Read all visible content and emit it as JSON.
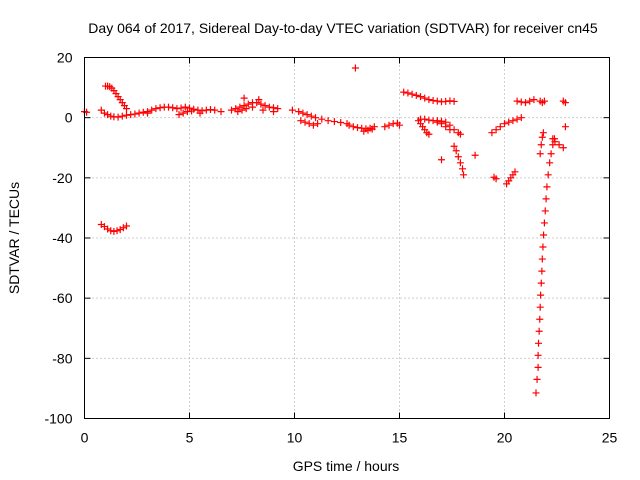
{
  "chart_data": {
    "type": "scatter",
    "title": "Day 064 of 2017, Sidereal Day-to-day VTEC variation (SDTVAR) for receiver cn45",
    "xlabel": "GPS time / hours",
    "ylabel": "SDTVAR / TECUs",
    "xlim": [
      0,
      25
    ],
    "ylim": [
      -100,
      20
    ],
    "xticks": [
      "0",
      "5",
      "10",
      "15",
      "20",
      "25"
    ],
    "yticks": [
      "20",
      "0",
      "-20",
      "-40",
      "-60",
      "-80",
      "-100"
    ],
    "grid": true,
    "marker": "+",
    "color": "#ff0000",
    "series": [
      {
        "values": [
          [
            0.0,
            2
          ],
          [
            0.1,
            1.8
          ],
          [
            0.8,
            2.5
          ],
          [
            0.95,
            1.5
          ],
          [
            1.1,
            1
          ],
          [
            1.25,
            0.5
          ],
          [
            1.4,
            0.3
          ],
          [
            1.6,
            0.2
          ],
          [
            1.8,
            0.5
          ],
          [
            2.0,
            0.8
          ],
          [
            2.2,
            1
          ],
          [
            2.4,
            1.2
          ],
          [
            2.6,
            1.5
          ],
          [
            2.8,
            1.8
          ],
          [
            3.0,
            2
          ],
          [
            1.0,
            10.5
          ],
          [
            1.1,
            10.5
          ],
          [
            1.2,
            10.3
          ],
          [
            1.3,
            9.8
          ],
          [
            1.4,
            9.0
          ],
          [
            1.5,
            8.0
          ],
          [
            1.6,
            7.0
          ],
          [
            1.7,
            6.0
          ],
          [
            1.8,
            5.0
          ],
          [
            1.9,
            4.0
          ],
          [
            2.0,
            3.0
          ],
          [
            0.8,
            -35.5
          ],
          [
            0.95,
            -36.2
          ],
          [
            1.1,
            -37
          ],
          [
            1.25,
            -37.6
          ],
          [
            1.4,
            -37.8
          ],
          [
            1.55,
            -37.6
          ],
          [
            1.7,
            -37.2
          ],
          [
            1.85,
            -36.6
          ],
          [
            2.0,
            -36.0
          ],
          [
            3.0,
            1.5
          ],
          [
            3.2,
            2.5
          ],
          [
            3.4,
            3
          ],
          [
            3.6,
            3.3
          ],
          [
            3.8,
            3.5
          ],
          [
            4.0,
            3.5
          ],
          [
            4.2,
            3.3
          ],
          [
            4.4,
            3
          ],
          [
            4.6,
            3.2
          ],
          [
            4.8,
            3.5
          ],
          [
            5.0,
            3.2
          ],
          [
            5.2,
            2.8
          ],
          [
            5.4,
            2.5
          ],
          [
            5.6,
            2.3
          ],
          [
            5.8,
            2.5
          ],
          [
            6.0,
            2.7
          ],
          [
            6.2,
            2.5
          ],
          [
            4.5,
            1
          ],
          [
            4.7,
            1.5
          ],
          [
            4.9,
            2
          ],
          [
            5.1,
            2.2
          ],
          [
            5.5,
            1.5
          ],
          [
            6.5,
            2
          ],
          [
            7.0,
            2.5
          ],
          [
            7.2,
            3
          ],
          [
            7.4,
            3.5
          ],
          [
            7.6,
            4
          ],
          [
            7.8,
            4.5
          ],
          [
            8.0,
            5
          ],
          [
            8.2,
            5
          ],
          [
            8.4,
            4.5
          ],
          [
            8.6,
            4
          ],
          [
            8.8,
            3.5
          ],
          [
            9.0,
            3.3
          ],
          [
            9.2,
            3
          ],
          [
            7.6,
            6.5
          ],
          [
            8.3,
            6
          ],
          [
            7.3,
            2
          ],
          [
            7.5,
            2.5
          ],
          [
            7.7,
            3
          ],
          [
            8.0,
            3.5
          ],
          [
            8.5,
            2.5
          ],
          [
            9.0,
            2
          ],
          [
            9.9,
            2.5
          ],
          [
            10.2,
            2
          ],
          [
            10.4,
            1.5
          ],
          [
            10.6,
            1
          ],
          [
            10.8,
            0.5
          ],
          [
            11.0,
            0
          ],
          [
            11.3,
            -0.5
          ],
          [
            11.6,
            -1
          ],
          [
            11.9,
            -1.3
          ],
          [
            12.2,
            -1.6
          ],
          [
            12.5,
            -2
          ],
          [
            10.3,
            -1
          ],
          [
            10.5,
            -1.5
          ],
          [
            10.7,
            -2
          ],
          [
            10.9,
            -2.5
          ],
          [
            11.1,
            -2
          ],
          [
            12.6,
            -2.5
          ],
          [
            12.8,
            -3
          ],
          [
            13.0,
            -3.3
          ],
          [
            13.2,
            -3.5
          ],
          [
            13.4,
            -3.7
          ],
          [
            13.6,
            -3.5
          ],
          [
            13.8,
            -3
          ],
          [
            13.3,
            -4.5
          ],
          [
            13.5,
            -4.2
          ],
          [
            13.7,
            -3.8
          ],
          [
            12.9,
            16.5
          ],
          [
            14.3,
            -3
          ],
          [
            14.5,
            -2.5
          ],
          [
            14.7,
            -2
          ],
          [
            14.9,
            -1.8
          ],
          [
            15.0,
            -2.5
          ],
          [
            15.2,
            8.5
          ],
          [
            15.4,
            8.2
          ],
          [
            15.6,
            7.8
          ],
          [
            15.8,
            7.4
          ],
          [
            16.0,
            7
          ],
          [
            16.2,
            6.5
          ],
          [
            16.4,
            6
          ],
          [
            16.6,
            5.7
          ],
          [
            16.8,
            5.5
          ],
          [
            17.0,
            5.3
          ],
          [
            17.2,
            5.4
          ],
          [
            17.4,
            5.6
          ],
          [
            17.6,
            5.4
          ],
          [
            15.9,
            -1
          ],
          [
            16.0,
            -2
          ],
          [
            16.1,
            -3
          ],
          [
            16.2,
            -4
          ],
          [
            16.3,
            -5
          ],
          [
            16.4,
            -5.5
          ],
          [
            16.0,
            -0.5
          ],
          [
            16.2,
            -0.5
          ],
          [
            16.4,
            -0.8
          ],
          [
            16.6,
            -1
          ],
          [
            16.8,
            -1
          ],
          [
            17.0,
            -1.2
          ],
          [
            17.2,
            -1.5
          ],
          [
            17.4,
            -2.5
          ],
          [
            17.6,
            -4
          ],
          [
            17.8,
            -5
          ],
          [
            17.9,
            -5.5
          ],
          [
            16.8,
            -1.5
          ],
          [
            17.0,
            -2
          ],
          [
            17.2,
            -3
          ],
          [
            17.4,
            -4
          ],
          [
            17.6,
            -9.5
          ],
          [
            17.7,
            -11
          ],
          [
            17.8,
            -13
          ],
          [
            17.9,
            -15
          ],
          [
            18.0,
            -17
          ],
          [
            18.05,
            -19
          ],
          [
            17.0,
            -14
          ],
          [
            18.6,
            -12.5
          ],
          [
            19.4,
            -5
          ],
          [
            19.6,
            -4
          ],
          [
            19.8,
            -3
          ],
          [
            20.0,
            -2
          ],
          [
            20.2,
            -1.5
          ],
          [
            20.4,
            -1
          ],
          [
            20.6,
            -0.5
          ],
          [
            20.8,
            0
          ],
          [
            19.5,
            -19.8
          ],
          [
            19.6,
            -20.3
          ],
          [
            20.1,
            -22
          ],
          [
            20.2,
            -21
          ],
          [
            20.3,
            -20
          ],
          [
            20.4,
            -19
          ],
          [
            20.5,
            -18
          ],
          [
            20.6,
            5.5
          ],
          [
            20.8,
            5.2
          ],
          [
            21.0,
            5
          ],
          [
            21.2,
            5.5
          ],
          [
            21.4,
            6
          ],
          [
            21.7,
            5.5
          ],
          [
            21.8,
            5
          ],
          [
            21.9,
            5.5
          ],
          [
            22.8,
            5.5
          ],
          [
            22.9,
            5
          ],
          [
            22.9,
            -3
          ],
          [
            22.3,
            -7
          ],
          [
            22.4,
            -8
          ],
          [
            22.6,
            -9
          ],
          [
            22.8,
            -10
          ],
          [
            21.5,
            -91.5
          ],
          [
            21.55,
            -87
          ],
          [
            21.6,
            -83
          ],
          [
            21.6,
            -79
          ],
          [
            21.62,
            -75
          ],
          [
            21.65,
            -71
          ],
          [
            21.68,
            -67
          ],
          [
            21.7,
            -63
          ],
          [
            21.72,
            -59
          ],
          [
            21.75,
            -55
          ],
          [
            21.78,
            -51
          ],
          [
            21.8,
            -47
          ],
          [
            21.83,
            -43
          ],
          [
            21.86,
            -39
          ],
          [
            21.9,
            -35
          ],
          [
            21.94,
            -31
          ],
          [
            21.98,
            -27
          ],
          [
            22.02,
            -23
          ],
          [
            22.08,
            -19
          ],
          [
            22.15,
            -15
          ],
          [
            22.22,
            -12
          ],
          [
            22.3,
            -9
          ],
          [
            22.38,
            -7
          ],
          [
            21.7,
            -12
          ],
          [
            21.75,
            -9
          ],
          [
            21.8,
            -6.5
          ],
          [
            21.85,
            -5
          ]
        ]
      }
    ]
  }
}
